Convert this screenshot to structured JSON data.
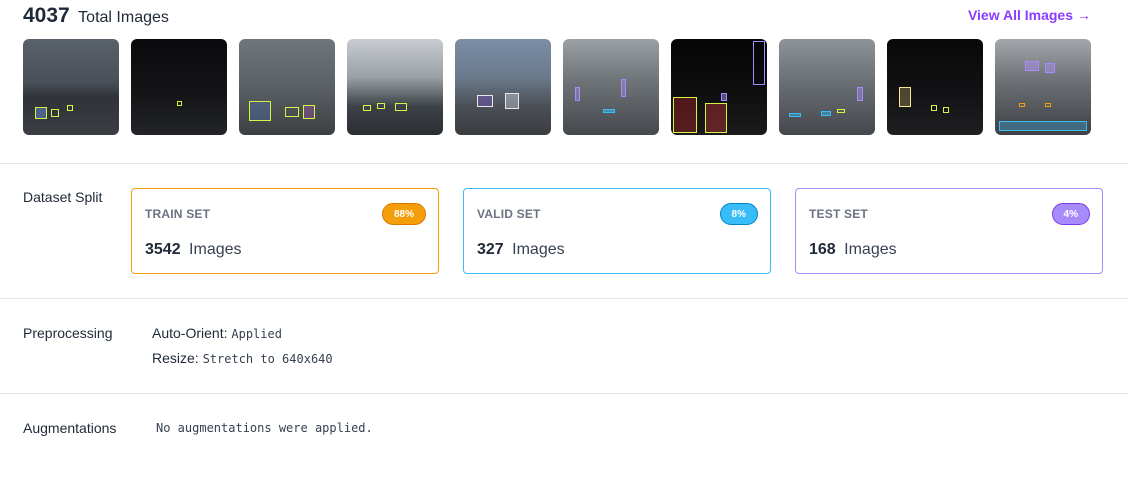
{
  "header": {
    "total_count": "4037",
    "total_label": "Total Images",
    "view_all_label": "View All Images",
    "view_all_arrow": "→"
  },
  "colors": {
    "accent": "#8b3dff",
    "train": "#f59e0b",
    "valid": "#38bdf8",
    "test": "#a78bfa"
  },
  "thumbnails_count": 10,
  "dataset_split": {
    "label": "Dataset Split",
    "train": {
      "name": "TRAIN SET",
      "percent": "88%",
      "count": "3542",
      "unit": "Images"
    },
    "valid": {
      "name": "VALID SET",
      "percent": "8%",
      "count": "327",
      "unit": "Images"
    },
    "test": {
      "name": "TEST SET",
      "percent": "4%",
      "count": "168",
      "unit": "Images"
    }
  },
  "preprocessing": {
    "label": "Preprocessing",
    "items": [
      {
        "key": "Auto-Orient:",
        "value": "Applied"
      },
      {
        "key": "Resize:",
        "value": "Stretch to 640x640"
      }
    ]
  },
  "augmentations": {
    "label": "Augmentations",
    "text": "No augmentations were applied."
  }
}
